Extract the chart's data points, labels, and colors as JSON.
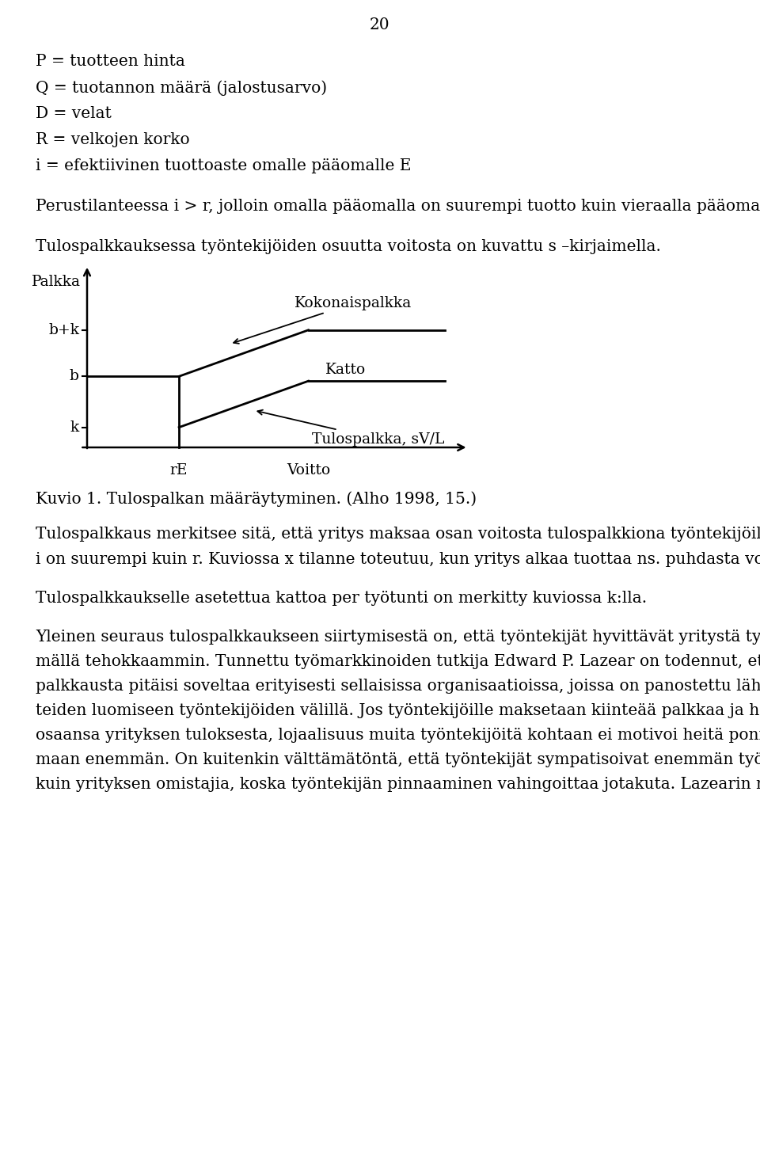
{
  "page_number": "20",
  "background_color": "#ffffff",
  "text_color": "#000000",
  "font_family": "DejaVu Serif",
  "figsize": [
    9.6,
    14.51
  ],
  "dpi": 100,
  "header_lines": [
    "P = tuotteen hinta",
    "Q = tuotannon määrä (jalostusarvo)",
    "D = velat",
    "R = velkojen korko",
    "i = efektiivinen tuottoaste omalle pääomalle E"
  ],
  "para1": "Perustilanteessa i > r, jolloin omalla pääomalla on suurempi tuotto kuin vieraalla pääomalla",
  "para2": "Tulospalkkauksessa työntekijöiden osuutta voitosta on kuvattu s –kirjaimella.",
  "ylabel_text": "Palkka",
  "xlabel_text": "Voitto",
  "ytick_b_plus_k": "b+k",
  "ytick_b": "b",
  "ytick_k": "k",
  "xtick_rE": "rE",
  "label_kokonaispalkka": "Kokonaispalkka",
  "label_katto": "Katto",
  "label_tulospalkka": "Tulospalkka, sV/L",
  "caption": "Kuvio 1. Tulospalkan määräytyminen. (Alho 1998, 15.)",
  "body_lines": [
    "Tulospalkkaus merkitsee sitä, että yritys maksaa osan voitosta tulospalkkiona työntekijöille. Tällöin",
    "i on suurempi kuin r. Kuviossa x tilanne toteutuu, kun yritys alkaa tuottaa ns. puhdasta voittoa (i>r).",
    "",
    "Tulospalkkaukselle asetettua kattoa per työtunti on merkitty kuviossa k:lla.",
    "",
    "Yleinen seuraus tulospalkkaukseen siirtymisestä on, että työntekijät hyvittävät yritystä työskentele-",
    "mällä tehokkaammin. Tunnettu työmarkkinoiden tutkija Edward P. Lazear on todennut, että tulos-",
    "palkkausta pitäisi soveltaa erityisesti sellaisissa organisaatioissa, joissa on panostettu läheisten suh-",
    "teiden luomiseen työntekijöiden välillä. Jos työntekijöille maksetaan kiinteää palkkaa ja he eivät saa",
    "osaansa yrityksen tuloksesta, lojaalisuus muita työntekijöitä kohtaan ei motivoi heitä ponnistele-",
    "maan enemmän. On kuitenkin välttämätöntä, että työntekijät sympatisoivat enemmän työtovereitaan",
    "kuin yrityksen omistajia, koska työntekijän pinnaaminen vahingoittaa jotakuta. Lazearin mukaan"
  ]
}
